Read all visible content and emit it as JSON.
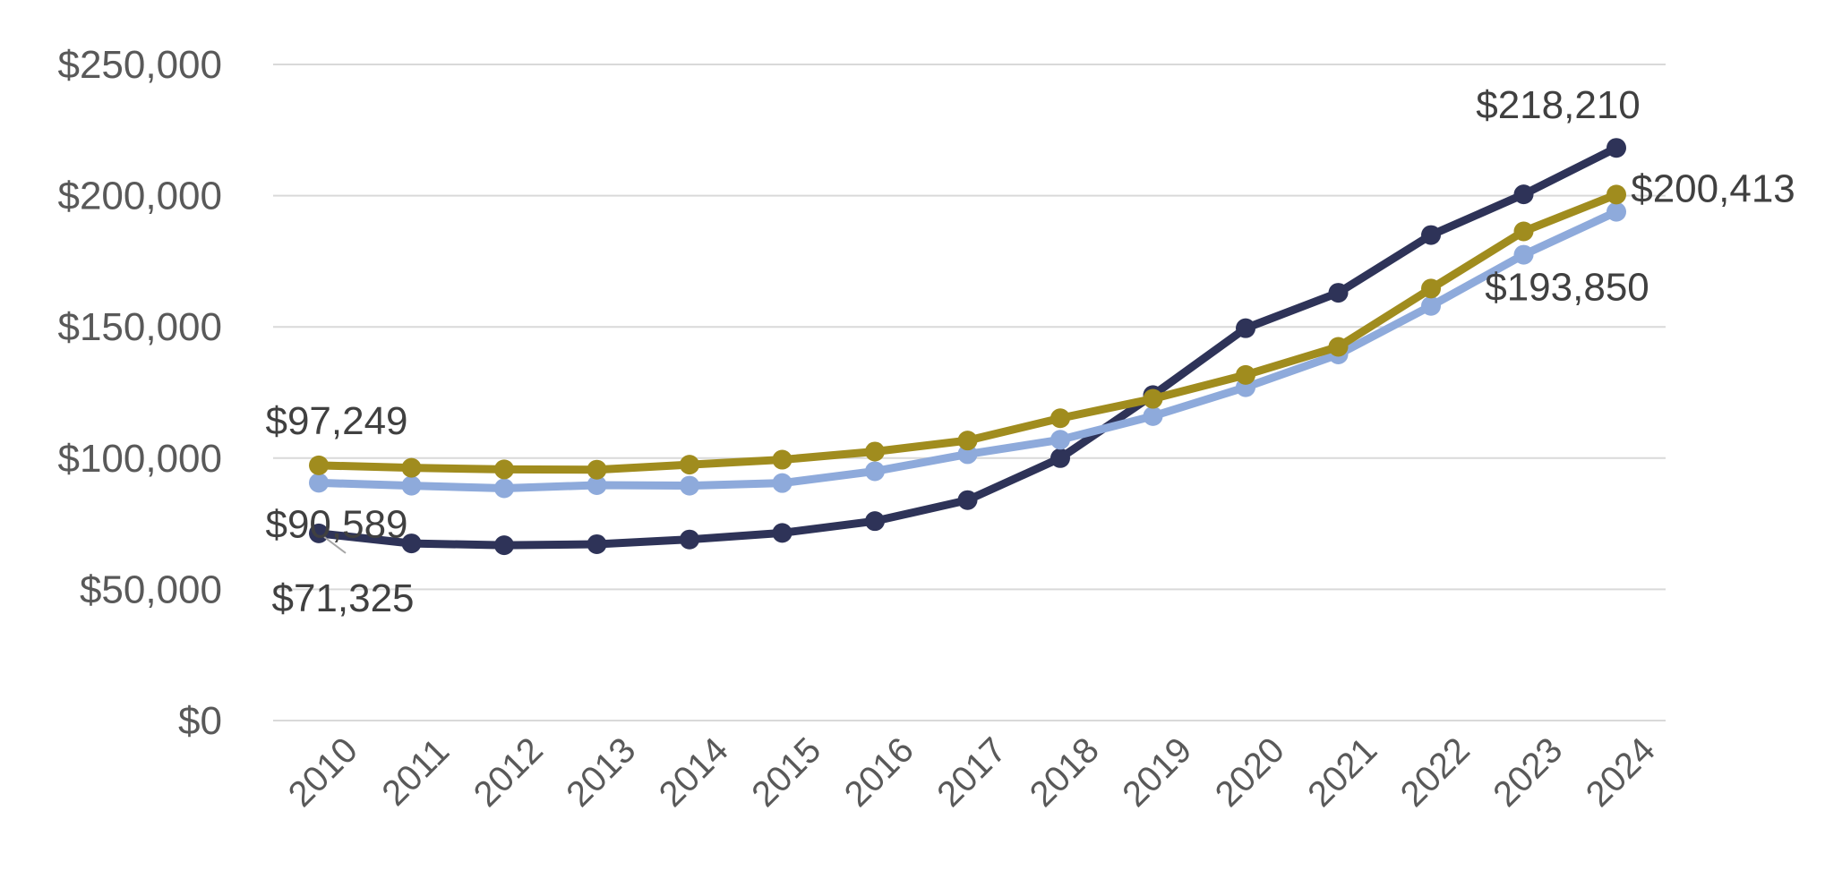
{
  "chart_data": {
    "type": "line",
    "title": "",
    "xlabel": "",
    "ylabel": "",
    "categories": [
      "2010",
      "2011",
      "2012",
      "2013",
      "2014",
      "2015",
      "2016",
      "2017",
      "2018",
      "2019",
      "2020",
      "2021",
      "2022",
      "2023",
      "2024"
    ],
    "ylim": [
      0,
      250000
    ],
    "y_ticks": [
      {
        "value": 0,
        "label": "$0"
      },
      {
        "value": 50000,
        "label": "$50,000"
      },
      {
        "value": 100000,
        "label": "$100,000"
      },
      {
        "value": 150000,
        "label": "$150,000"
      },
      {
        "value": 200000,
        "label": "$200,000"
      },
      {
        "value": 250000,
        "label": "$250,000"
      }
    ],
    "grid": true,
    "legend": "none",
    "series": [
      {
        "color": "#2e3358",
        "values": [
          71325,
          67500,
          66800,
          67200,
          69000,
          71500,
          76000,
          84000,
          100000,
          124000,
          149500,
          163000,
          185000,
          200500,
          218210
        ],
        "labels": [
          {
            "index": 0,
            "text": "$71,325"
          },
          {
            "index": 14,
            "text": "$218,210"
          }
        ]
      },
      {
        "color": "#8eaadb",
        "values": [
          90589,
          89500,
          88500,
          89700,
          89500,
          90500,
          95000,
          101500,
          107000,
          116000,
          127000,
          139500,
          158000,
          177500,
          193850
        ],
        "labels": [
          {
            "index": 0,
            "text": "$90,589"
          },
          {
            "index": 14,
            "text": "$193,850"
          }
        ]
      },
      {
        "color": "#a08c1e",
        "values": [
          97249,
          96300,
          95700,
          95600,
          97500,
          99400,
          102500,
          106700,
          115200,
          122600,
          131700,
          142400,
          164600,
          186400,
          200413
        ],
        "labels": [
          {
            "index": 0,
            "text": "$97,249"
          },
          {
            "index": 14,
            "text": "$200,413"
          }
        ]
      }
    ]
  }
}
